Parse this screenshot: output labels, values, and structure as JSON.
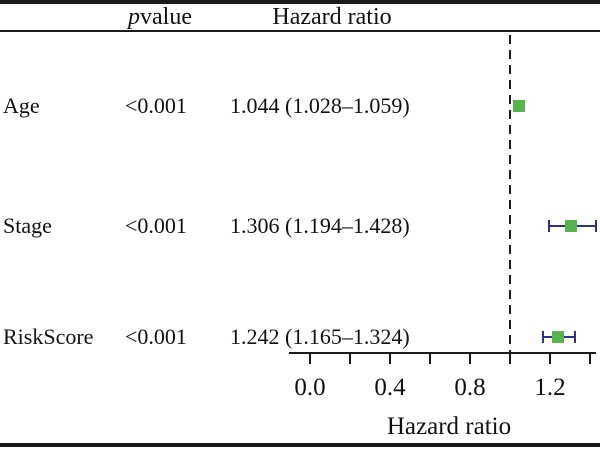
{
  "figure": {
    "header": {
      "pvalue_label_italic": "p",
      "pvalue_label_rest": "value",
      "hazard_ratio_label": "Hazard ratio"
    },
    "rows": [
      {
        "label": "Age",
        "pvalue": "<0.001",
        "hr_ci": "1.044 (1.028–1.059)"
      },
      {
        "label": "Stage",
        "pvalue": "<0.001",
        "hr_ci": "1.306 (1.194–1.428)"
      },
      {
        "label": "RiskScore",
        "pvalue": "<0.001",
        "hr_ci": "1.242 (1.165–1.324)"
      }
    ]
  },
  "colors": {
    "marker_green": "#56b44c",
    "ci_navy": "#2b3088",
    "line_black": "#1a1a1a",
    "background": "#ffffff"
  },
  "chart_data": {
    "type": "forest",
    "title": "",
    "xlabel": "Hazard ratio",
    "xlim": [
      -0.1,
      1.43
    ],
    "reference_line": 1.0,
    "grid": false,
    "xticks": [
      {
        "value": 0.0,
        "label": "0.0"
      },
      {
        "value": 0.2,
        "label": ""
      },
      {
        "value": 0.4,
        "label": "0.4"
      },
      {
        "value": 0.6,
        "label": ""
      },
      {
        "value": 0.8,
        "label": "0.8"
      },
      {
        "value": 1.0,
        "label": ""
      },
      {
        "value": 1.2,
        "label": "1.2"
      },
      {
        "value": 1.4,
        "label": ""
      }
    ],
    "categories": [
      "Age",
      "Stage",
      "RiskScore"
    ],
    "series": [
      {
        "name": "Age",
        "pvalue": "<0.001",
        "hr": 1.044,
        "ci_low": 1.028,
        "ci_high": 1.059
      },
      {
        "name": "Stage",
        "pvalue": "<0.001",
        "hr": 1.306,
        "ci_low": 1.194,
        "ci_high": 1.428
      },
      {
        "name": "RiskScore",
        "pvalue": "<0.001",
        "hr": 1.242,
        "ci_low": 1.165,
        "ci_high": 1.324
      }
    ]
  }
}
